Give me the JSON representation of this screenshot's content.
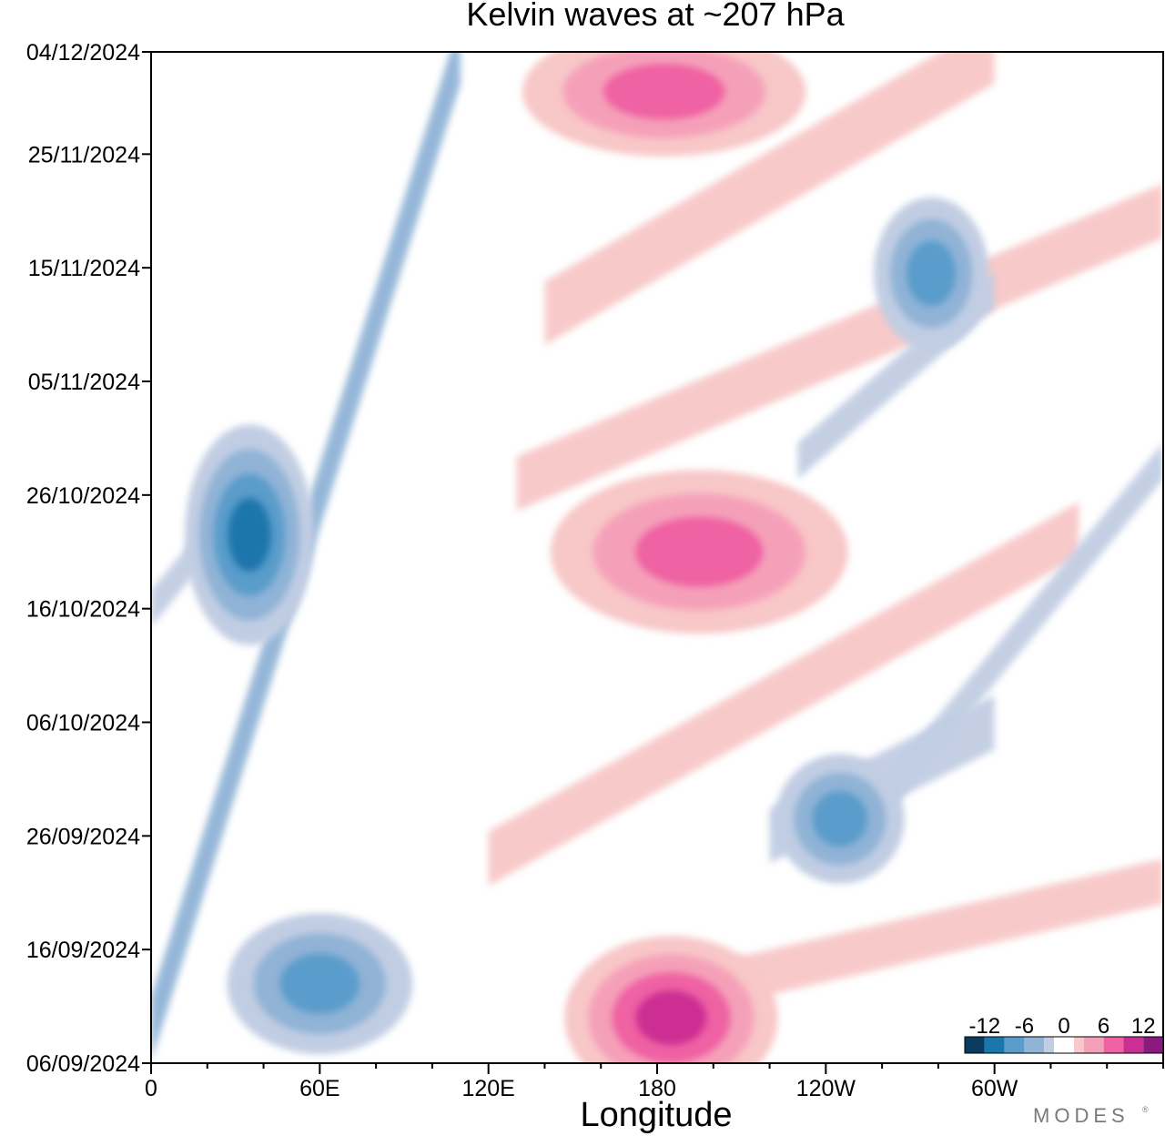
{
  "chart_data": {
    "type": "heatmap",
    "title": "Kelvin waves at ~207 hPa",
    "xlabel": "Longitude",
    "ylabel": "",
    "x_ticks": [
      {
        "label": "0",
        "lon": 0
      },
      {
        "label": "60E",
        "lon": 60
      },
      {
        "label": "120E",
        "lon": 120
      },
      {
        "label": "180",
        "lon": 180
      },
      {
        "label": "120W",
        "lon": 240
      },
      {
        "label": "60W",
        "lon": 300
      }
    ],
    "xlim": [
      0,
      360
    ],
    "y_ticks": [
      "06/09/2024",
      "16/09/2024",
      "26/09/2024",
      "06/10/2024",
      "16/10/2024",
      "26/10/2024",
      "05/11/2024",
      "15/11/2024",
      "25/11/2024",
      "04/12/2024"
    ],
    "ylim": [
      "06/09/2024",
      "04/12/2024"
    ],
    "colorbar": {
      "levels": [
        -15,
        -12,
        -9,
        -6,
        -3,
        -1.5,
        1.5,
        3,
        6,
        9,
        12,
        15
      ],
      "tick_labels": [
        "-12",
        "-6",
        "0",
        "6",
        "12"
      ],
      "tick_values": [
        -12,
        -6,
        0,
        6,
        12
      ],
      "colors": [
        "#0a3a5e",
        "#1b76ac",
        "#5a9ccb",
        "#90b3d6",
        "#c1cde3",
        "#ffffff",
        "#f8c7c7",
        "#f5a0b9",
        "#ef62a3",
        "#cc2f93",
        "#8a1a7e"
      ]
    },
    "features": [
      {
        "sign": "negative",
        "intensity": 3,
        "lon": [
          25,
          45
        ],
        "date": [
          "16/10/2024",
          "29/10/2024"
        ]
      },
      {
        "sign": "negative",
        "intensity": 2,
        "lon": [
          40,
          80
        ],
        "date": [
          "10/09/2024",
          "16/09/2024"
        ]
      },
      {
        "sign": "negative",
        "intensity": 2,
        "lon": [
          235,
          255
        ],
        "date": [
          "25/09/2024",
          "30/09/2024"
        ]
      },
      {
        "sign": "negative",
        "intensity": 2,
        "lon": [
          270,
          285
        ],
        "date": [
          "11/11/2024",
          "18/11/2024"
        ]
      },
      {
        "sign": "positive",
        "intensity": 3,
        "lon": [
          160,
          210
        ],
        "date": [
          "06/09/2024",
          "14/09/2024"
        ]
      },
      {
        "sign": "positive",
        "intensity": 2,
        "lon": [
          155,
          235
        ],
        "date": [
          "17/10/2024",
          "25/10/2024"
        ]
      },
      {
        "sign": "positive",
        "intensity": 2,
        "lon": [
          145,
          220
        ],
        "date": [
          "28/11/2024",
          "03/12/2024"
        ]
      }
    ]
  },
  "brand": "MODES"
}
